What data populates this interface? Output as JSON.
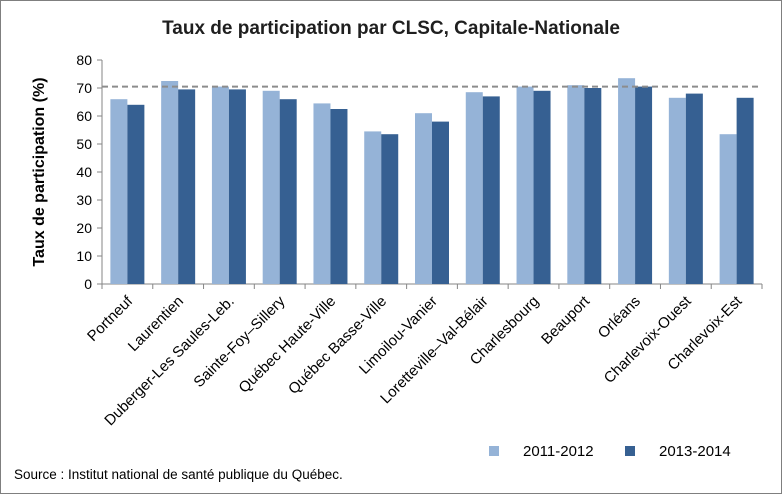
{
  "chart_data": {
    "type": "bar",
    "title": "Taux de participation par CLSC, Capitale-Nationale",
    "ylabel": "Taux de participation (%)",
    "xlabel": "",
    "ylim": [
      0,
      80
    ],
    "yticks": [
      0,
      10,
      20,
      30,
      40,
      50,
      60,
      70,
      80
    ],
    "reference_line": 70.5,
    "categories": [
      "Portneuf",
      "Laurentien",
      "Duberger-Les Saules-Leb.",
      "Sainte-Foy–Sillery",
      "Québec Haute-Ville",
      "Québec Basse-Ville",
      "Limoilou-Vanier",
      "Loretteville–Val-Bélair",
      "Charlesbourg",
      "Beauport",
      "Orléans",
      "Charlevoix-Ouest",
      "Charlevoix-Est"
    ],
    "series": [
      {
        "name": "2011-2012",
        "color": "#95b3d7",
        "values": [
          66,
          72.5,
          70.5,
          69,
          64.5,
          54.5,
          61,
          68.5,
          70.5,
          71,
          73.5,
          66.5,
          53.5
        ]
      },
      {
        "name": "2013-2014",
        "color": "#366092",
        "values": [
          64,
          69.5,
          69.5,
          66,
          62.5,
          53.5,
          58,
          67,
          69,
          70,
          70.5,
          68,
          66.5
        ]
      }
    ],
    "legend_position": "bottom-right",
    "grid": false
  },
  "source_text": "Source : Institut national de santé publique du Québec."
}
